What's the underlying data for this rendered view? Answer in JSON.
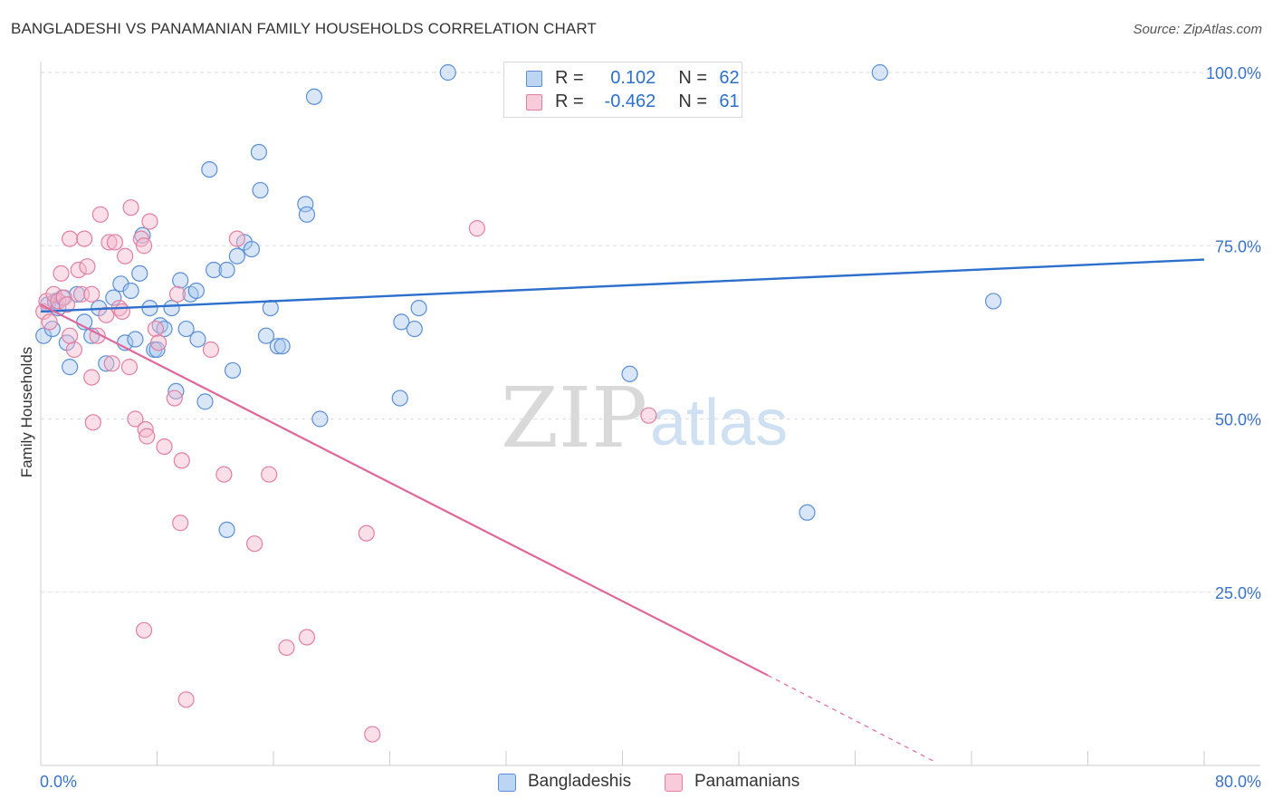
{
  "title": "BANGLADESHI VS PANAMANIAN FAMILY HOUSEHOLDS CORRELATION CHART",
  "source": "Source: ZipAtlas.com",
  "watermark": {
    "zip": "ZIP",
    "atlas": "atlas"
  },
  "legend": {
    "rows": [
      {
        "r_label": "R =",
        "r_value": "0.102",
        "n_label": "N =",
        "n_value": "62"
      },
      {
        "r_label": "R =",
        "r_value": "-0.462",
        "n_label": "N =",
        "n_value": "61"
      }
    ]
  },
  "bottom_legend": {
    "bangladeshis": "Bangladeshis",
    "panamanians": "Panamanians"
  },
  "colors": {
    "blue_fill": "#a9c8ef",
    "blue_stroke": "#5b8fd6",
    "blue_line": "#2c6fcc",
    "pink_fill": "#f5b9cd",
    "pink_stroke": "#e27fa1",
    "pink_line": "#e0679a",
    "axis_text": "#3b73c8"
  },
  "chart_data": {
    "type": "scatter",
    "title": "BANGLADESHI VS PANAMANIAN FAMILY HOUSEHOLDS CORRELATION CHART",
    "xlabel": "",
    "ylabel": "Family Households",
    "xlim": [
      0,
      80
    ],
    "ylim": [
      0,
      100
    ],
    "x_tick_labels": [
      "0.0%",
      "80.0%"
    ],
    "y_tick_labels": [
      "100.0%",
      "75.0%",
      "50.0%",
      "25.0%"
    ],
    "y_tick_values": [
      100,
      75,
      50,
      25
    ],
    "series": [
      {
        "name": "Bangladeshis",
        "R": 0.102,
        "N": 62,
        "trend": {
          "x0": 0,
          "y0": 65.5,
          "x1": 80,
          "y1": 73.0
        },
        "points": [
          [
            0.2,
            62
          ],
          [
            0.5,
            66.5
          ],
          [
            0.8,
            63
          ],
          [
            1.0,
            67
          ],
          [
            1.2,
            66
          ],
          [
            1.5,
            67.5
          ],
          [
            1.8,
            61
          ],
          [
            2.0,
            57.5
          ],
          [
            2.5,
            68
          ],
          [
            3.0,
            64
          ],
          [
            3.5,
            62
          ],
          [
            4.0,
            66
          ],
          [
            4.5,
            58
          ],
          [
            5.0,
            67.5
          ],
          [
            5.5,
            69.5
          ],
          [
            5.8,
            61
          ],
          [
            6.2,
            68.5
          ],
          [
            6.5,
            61.5
          ],
          [
            6.8,
            71
          ],
          [
            7.0,
            76.5
          ],
          [
            7.5,
            66
          ],
          [
            7.8,
            60
          ],
          [
            8.0,
            60
          ],
          [
            8.2,
            63.5
          ],
          [
            8.5,
            63
          ],
          [
            9.0,
            66
          ],
          [
            9.3,
            54
          ],
          [
            9.6,
            70
          ],
          [
            10.0,
            63
          ],
          [
            10.3,
            68
          ],
          [
            10.7,
            68.5
          ],
          [
            10.8,
            61.5
          ],
          [
            11.3,
            52.5
          ],
          [
            11.6,
            86
          ],
          [
            11.9,
            71.5
          ],
          [
            12.8,
            71.5
          ],
          [
            13.2,
            57
          ],
          [
            13.5,
            73.5
          ],
          [
            14.0,
            75.5
          ],
          [
            14.5,
            74.5
          ],
          [
            15.0,
            88.5
          ],
          [
            15.1,
            83
          ],
          [
            15.5,
            62
          ],
          [
            15.8,
            66
          ],
          [
            16.3,
            60.5
          ],
          [
            16.6,
            60.5
          ],
          [
            18.2,
            81
          ],
          [
            18.3,
            79.5
          ],
          [
            18.8,
            96.5
          ],
          [
            19.2,
            50
          ],
          [
            12.8,
            34
          ],
          [
            24.7,
            53
          ],
          [
            24.8,
            64
          ],
          [
            25.7,
            63
          ],
          [
            26.0,
            66
          ],
          [
            28.0,
            100
          ],
          [
            40.5,
            56.5
          ],
          [
            52.7,
            36.5
          ],
          [
            57.7,
            100
          ],
          [
            65.5,
            67
          ]
        ]
      },
      {
        "name": "Panamanians",
        "R": -0.462,
        "N": 61,
        "trend": {
          "x0": 0,
          "y0": 66.5,
          "x1": 50,
          "y1": 13.0
        },
        "trend_dashed": {
          "x0": 50,
          "y0": 13.0,
          "x1": 61.5,
          "y1": 0.5
        },
        "points": [
          [
            0.2,
            65.5
          ],
          [
            0.4,
            67
          ],
          [
            0.6,
            64
          ],
          [
            0.9,
            68
          ],
          [
            1.2,
            67
          ],
          [
            1.4,
            71
          ],
          [
            1.6,
            67.5
          ],
          [
            1.8,
            66.5
          ],
          [
            2.0,
            76
          ],
          [
            2.3,
            60
          ],
          [
            2.6,
            71.5
          ],
          [
            2.8,
            68
          ],
          [
            3.0,
            76
          ],
          [
            3.2,
            72
          ],
          [
            3.5,
            68
          ],
          [
            3.5,
            56
          ],
          [
            3.6,
            49.5
          ],
          [
            3.9,
            62
          ],
          [
            4.1,
            79.5
          ],
          [
            4.5,
            65
          ],
          [
            4.7,
            75.5
          ],
          [
            4.9,
            58
          ],
          [
            5.1,
            75.5
          ],
          [
            5.4,
            66
          ],
          [
            5.6,
            65.5
          ],
          [
            5.8,
            73.5
          ],
          [
            6.1,
            57.5
          ],
          [
            6.2,
            80.5
          ],
          [
            6.5,
            50
          ],
          [
            6.9,
            76
          ],
          [
            7.1,
            75
          ],
          [
            7.2,
            48.5
          ],
          [
            7.3,
            47.5
          ],
          [
            7.5,
            78.5
          ],
          [
            7.9,
            63
          ],
          [
            8.1,
            61
          ],
          [
            8.5,
            46
          ],
          [
            9.2,
            53
          ],
          [
            9.4,
            68
          ],
          [
            9.7,
            44
          ],
          [
            9.6,
            35
          ],
          [
            10.0,
            9.5
          ],
          [
            11.7,
            60
          ],
          [
            12.6,
            42
          ],
          [
            13.5,
            76
          ],
          [
            14.7,
            32
          ],
          [
            15.7,
            42
          ],
          [
            16.9,
            17
          ],
          [
            18.3,
            18.5
          ],
          [
            22.4,
            33.5
          ],
          [
            22.8,
            4.5
          ],
          [
            30.0,
            77.5
          ],
          [
            41.8,
            50.5
          ],
          [
            7.1,
            19.5
          ],
          [
            2.0,
            62
          ]
        ]
      }
    ]
  }
}
